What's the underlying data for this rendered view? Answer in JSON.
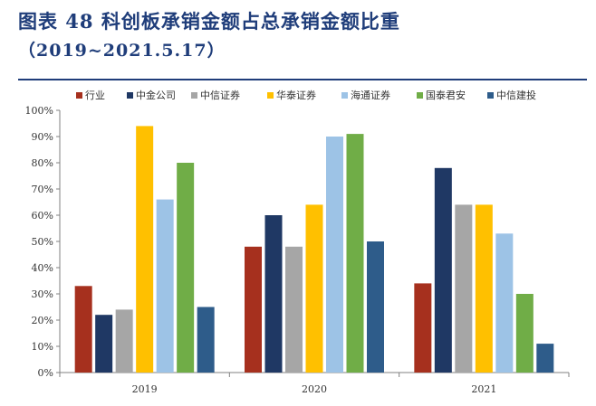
{
  "figure": {
    "title_line1": "图表  48   科创板承销金额占总承销金额比重",
    "title_line2": "（2019~2021.5.17）"
  },
  "chart_data": {
    "type": "bar",
    "categories": [
      "2019",
      "2020",
      "2021"
    ],
    "ylim": [
      0,
      100
    ],
    "yticks": [
      "0%",
      "10%",
      "20%",
      "30%",
      "40%",
      "50%",
      "60%",
      "70%",
      "80%",
      "90%",
      "100%"
    ],
    "grid": false,
    "legend_position": "top",
    "series": [
      {
        "name": "行业",
        "color": "#a6301e",
        "values": [
          33,
          48,
          34
        ]
      },
      {
        "name": "中金公司",
        "color": "#1f3864",
        "values": [
          22,
          60,
          78
        ]
      },
      {
        "name": "中信证券",
        "color": "#a6a6a6",
        "values": [
          24,
          48,
          64
        ]
      },
      {
        "name": "华泰证券",
        "color": "#ffc000",
        "values": [
          94,
          64,
          64
        ]
      },
      {
        "name": "海通证券",
        "color": "#9dc3e6",
        "values": [
          66,
          90,
          53
        ]
      },
      {
        "name": "国泰君安",
        "color": "#70ad47",
        "values": [
          80,
          91,
          30
        ]
      },
      {
        "name": "中信建投",
        "color": "#2e5c8a",
        "values": [
          25,
          50,
          11
        ]
      }
    ]
  }
}
